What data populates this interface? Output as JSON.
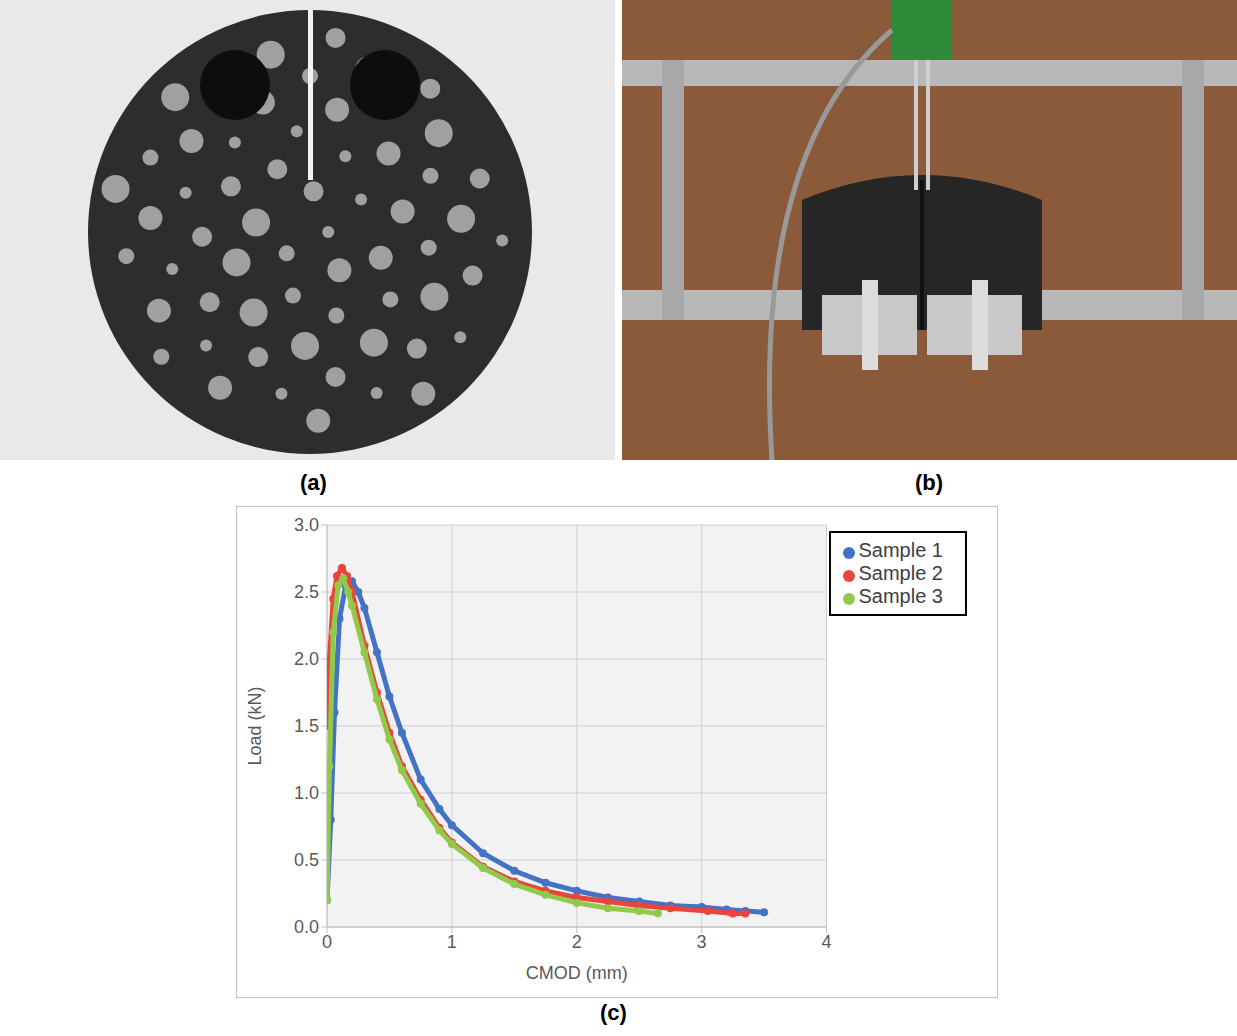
{
  "panel_labels": [
    "(a)",
    "(b)",
    "(c)"
  ],
  "chart_data": {
    "type": "scatter",
    "x_label": "CMOD (mm)",
    "y_label": "Load (kN)",
    "xlim": [
      0,
      4
    ],
    "xticks": [
      0,
      1,
      2,
      3,
      4
    ],
    "ylim": [
      0,
      3
    ],
    "yticks": [
      {
        "value": 0,
        "label": "0.0"
      },
      0.5,
      {
        "value": 1,
        "label": "1.0"
      },
      1.5,
      {
        "value": 2,
        "label": "2.0"
      },
      2.5,
      {
        "value": 3,
        "label": "3.0"
      }
    ],
    "grid": true,
    "legend": "upper right",
    "marker": "circle",
    "series": [
      {
        "name": "Sample 1",
        "color": "#4472c4",
        "x": [
          0,
          0.03,
          0.06,
          0.1,
          0.15,
          0.2,
          0.25,
          0.3,
          0.4,
          0.5,
          0.6,
          0.75,
          0.9,
          1.0,
          1.25,
          1.5,
          1.75,
          2.0,
          2.25,
          2.5,
          2.75,
          3.0,
          3.2,
          3.35,
          3.5
        ],
        "values": [
          0.2,
          0.8,
          1.6,
          2.3,
          2.55,
          2.58,
          2.5,
          2.38,
          2.05,
          1.72,
          1.45,
          1.1,
          0.88,
          0.76,
          0.55,
          0.42,
          0.33,
          0.27,
          0.22,
          0.19,
          0.16,
          0.15,
          0.13,
          0.12,
          0.11
        ]
      },
      {
        "name": "Sample 2",
        "color": "#e8453c",
        "x": [
          0,
          0.02,
          0.05,
          0.08,
          0.12,
          0.16,
          0.2,
          0.3,
          0.4,
          0.5,
          0.6,
          0.75,
          0.9,
          1.0,
          1.25,
          1.5,
          1.75,
          2.0,
          2.25,
          2.5,
          2.75,
          3.05,
          3.25,
          3.35
        ],
        "values": [
          1.5,
          2.0,
          2.45,
          2.62,
          2.68,
          2.62,
          2.5,
          2.1,
          1.75,
          1.45,
          1.2,
          0.95,
          0.74,
          0.63,
          0.45,
          0.34,
          0.27,
          0.22,
          0.19,
          0.16,
          0.14,
          0.12,
          0.1,
          0.1
        ]
      },
      {
        "name": "Sample 3",
        "color": "#92c94a",
        "x": [
          0,
          0.02,
          0.05,
          0.09,
          0.13,
          0.17,
          0.2,
          0.3,
          0.4,
          0.5,
          0.6,
          0.75,
          0.9,
          1.0,
          1.25,
          1.5,
          1.75,
          2.0,
          2.25,
          2.5,
          2.65
        ],
        "values": [
          0.2,
          1.2,
          2.2,
          2.55,
          2.6,
          2.5,
          2.4,
          2.05,
          1.7,
          1.4,
          1.17,
          0.92,
          0.72,
          0.62,
          0.44,
          0.32,
          0.24,
          0.18,
          0.14,
          0.12,
          0.1
        ]
      }
    ]
  }
}
